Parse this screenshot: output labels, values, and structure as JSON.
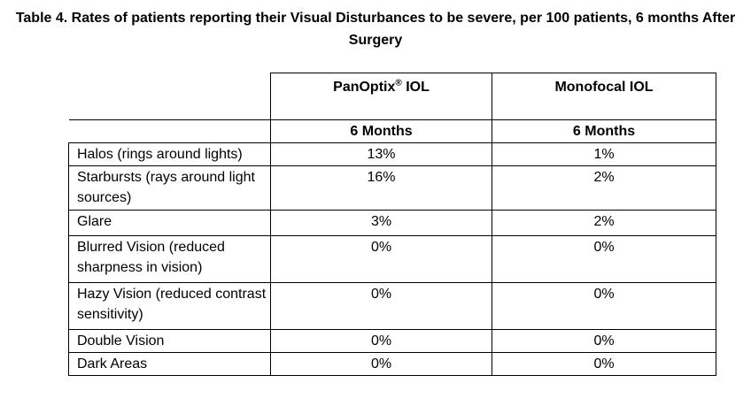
{
  "title": "Table 4. Rates of patients reporting their Visual Disturbances to be severe, per 100 patients, 6 months After Surgery",
  "columns": [
    {
      "name": "PanOptix",
      "mark": "®",
      "suffix": " IOL",
      "subheader": "6 Months"
    },
    {
      "name": "Monofocal IOL",
      "mark": "",
      "suffix": "",
      "subheader": "6 Months"
    }
  ],
  "rows": [
    {
      "label": "Halos (rings around lights)",
      "values": [
        "13%",
        "1%"
      ]
    },
    {
      "label": "Starbursts (rays around light sources)",
      "values": [
        "16%",
        "2%"
      ]
    },
    {
      "label": "Glare",
      "values": [
        "3%",
        "2%"
      ]
    },
    {
      "label": "Blurred Vision (reduced sharpness in vision)",
      "values": [
        "0%",
        "0%"
      ]
    },
    {
      "label": "Hazy Vision (reduced contrast sensitivity)",
      "values": [
        "0%",
        "0%"
      ]
    },
    {
      "label": "Double Vision",
      "values": [
        "0%",
        "0%"
      ]
    },
    {
      "label": "Dark Areas",
      "values": [
        "0%",
        "0%"
      ]
    }
  ]
}
